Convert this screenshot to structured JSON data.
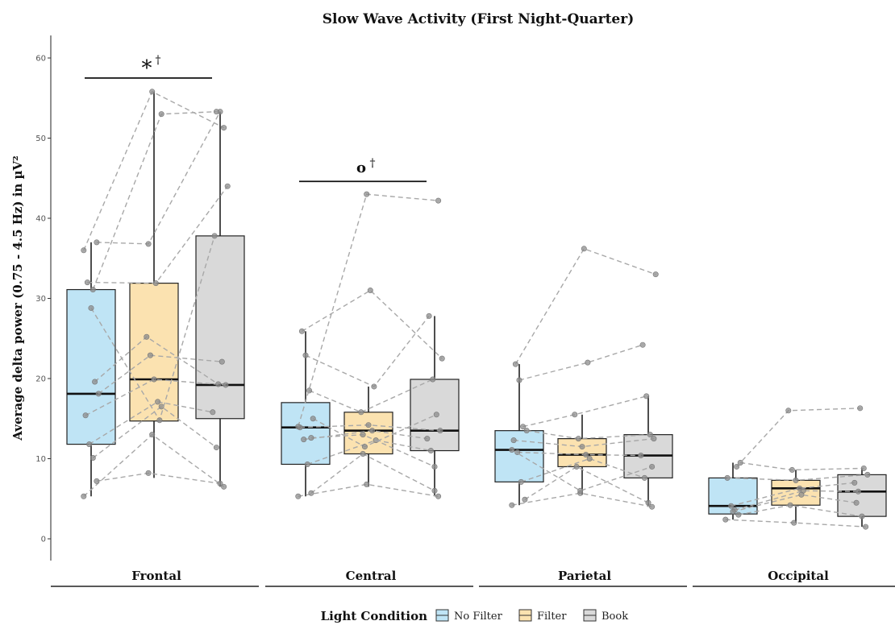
{
  "chart_data": {
    "type": "boxplot",
    "title": "Slow Wave Activity (First Night-Quarter)",
    "ylabel": "Average delta power (0.75 - 4.5 Hz) in µV²",
    "xlabel": "",
    "ylim": [
      -3,
      63
    ],
    "yticks": [
      0,
      10,
      20,
      30,
      40,
      50,
      60
    ],
    "grid": false,
    "legend": {
      "title": "Light Condition",
      "position": "bottom",
      "entries": [
        {
          "name": "No Filter",
          "color": "#bfe4f5"
        },
        {
          "name": "Filter",
          "color": "#fbe2b0"
        },
        {
          "name": "Book",
          "color": "#d9d9d9"
        }
      ]
    },
    "conditions": [
      "No Filter",
      "Filter",
      "Book"
    ],
    "colors": [
      "#bfe4f5",
      "#fbe2b0",
      "#d9d9d9"
    ],
    "facets": [
      {
        "name": "Frontal",
        "boxes": [
          {
            "min": 5.3,
            "q1": 11.8,
            "median": 18.1,
            "q3": 31.1,
            "max": 37.0
          },
          {
            "min": 7.6,
            "q1": 14.7,
            "median": 19.9,
            "q3": 31.9,
            "max": 55.8
          },
          {
            "min": 6.5,
            "q1": 15.0,
            "median": 19.2,
            "q3": 37.8,
            "max": 53.3
          }
        ],
        "subjects": [
          [
            5.3,
            13.0,
            6.5
          ],
          [
            7.2,
            8.2,
            6.9
          ],
          [
            10.1,
            16.5,
            11.4
          ],
          [
            11.8,
            17.1,
            15.8
          ],
          [
            15.4,
            19.9,
            19.2
          ],
          [
            18.1,
            22.9,
            22.1
          ],
          [
            19.6,
            25.2,
            19.3
          ],
          [
            28.8,
            14.8,
            37.8
          ],
          [
            32.0,
            31.9,
            44.0
          ],
          [
            36.0,
            55.8,
            51.3
          ],
          [
            37.0,
            36.8,
            53.3
          ],
          [
            31.1,
            53.0,
            53.3
          ]
        ],
        "significance": {
          "symbol": "*",
          "sup": "†",
          "y": 57.5,
          "from": 0,
          "to": 2
        }
      },
      {
        "name": "Central",
        "boxes": [
          {
            "min": 5.3,
            "q1": 9.3,
            "median": 13.9,
            "q3": 17.0,
            "max": 25.9
          },
          {
            "min": 6.5,
            "q1": 10.6,
            "median": 13.5,
            "q3": 15.8,
            "max": 19.0
          },
          {
            "min": 5.3,
            "q1": 11.0,
            "median": 13.5,
            "q3": 19.9,
            "max": 27.8
          }
        ],
        "subjects": [
          [
            5.3,
            6.8,
            5.3
          ],
          [
            5.7,
            10.6,
            6.0
          ],
          [
            9.3,
            12.3,
            11.0
          ],
          [
            12.4,
            13.5,
            12.5
          ],
          [
            13.9,
            14.2,
            13.5
          ],
          [
            15.0,
            11.5,
            15.5
          ],
          [
            18.5,
            15.8,
            19.9
          ],
          [
            22.9,
            19.0,
            27.8
          ],
          [
            25.9,
            31.0,
            22.5
          ],
          [
            14.0,
            43.0,
            42.2
          ],
          [
            12.6,
            13.0,
            9.0
          ]
        ],
        "significance": {
          "symbol": "o",
          "sup": "†",
          "y": 44.6,
          "from": 0,
          "to": 2
        }
      },
      {
        "name": "Parietal",
        "boxes": [
          {
            "min": 4.2,
            "q1": 7.1,
            "median": 11.1,
            "q3": 13.5,
            "max": 21.8
          },
          {
            "min": 5.5,
            "q1": 9.0,
            "median": 10.5,
            "q3": 12.5,
            "max": 15.5
          },
          {
            "min": 4.0,
            "q1": 7.6,
            "median": 10.4,
            "q3": 13.0,
            "max": 17.8
          }
        ],
        "subjects": [
          [
            4.2,
            5.7,
            4.0
          ],
          [
            4.9,
            9.0,
            4.5
          ],
          [
            7.1,
            10.0,
            7.6
          ],
          [
            10.8,
            10.5,
            10.4
          ],
          [
            12.3,
            11.5,
            12.5
          ],
          [
            13.5,
            12.5,
            13.0
          ],
          [
            14.0,
            15.5,
            17.8
          ],
          [
            19.8,
            22.0,
            24.2
          ],
          [
            21.8,
            36.2,
            33.0
          ],
          [
            11.1,
            6.0,
            9.0
          ]
        ],
        "significance": null
      },
      {
        "name": "Occipital",
        "boxes": [
          {
            "min": 2.4,
            "q1": 3.1,
            "median": 4.1,
            "q3": 7.6,
            "max": 9.5
          },
          {
            "min": 2.0,
            "q1": 4.2,
            "median": 6.3,
            "q3": 7.3,
            "max": 8.6
          },
          {
            "min": 1.5,
            "q1": 2.8,
            "median": 5.9,
            "q3": 8.0,
            "max": 8.8
          }
        ],
        "subjects": [
          [
            2.4,
            2.0,
            1.5
          ],
          [
            3.0,
            4.2,
            2.8
          ],
          [
            3.6,
            6.0,
            5.9
          ],
          [
            4.1,
            6.3,
            7.0
          ],
          [
            7.6,
            7.3,
            8.0
          ],
          [
            9.5,
            8.6,
            8.8
          ],
          [
            9.0,
            16.0,
            16.3
          ],
          [
            3.4,
            5.5,
            4.5
          ]
        ],
        "significance": null
      }
    ]
  }
}
